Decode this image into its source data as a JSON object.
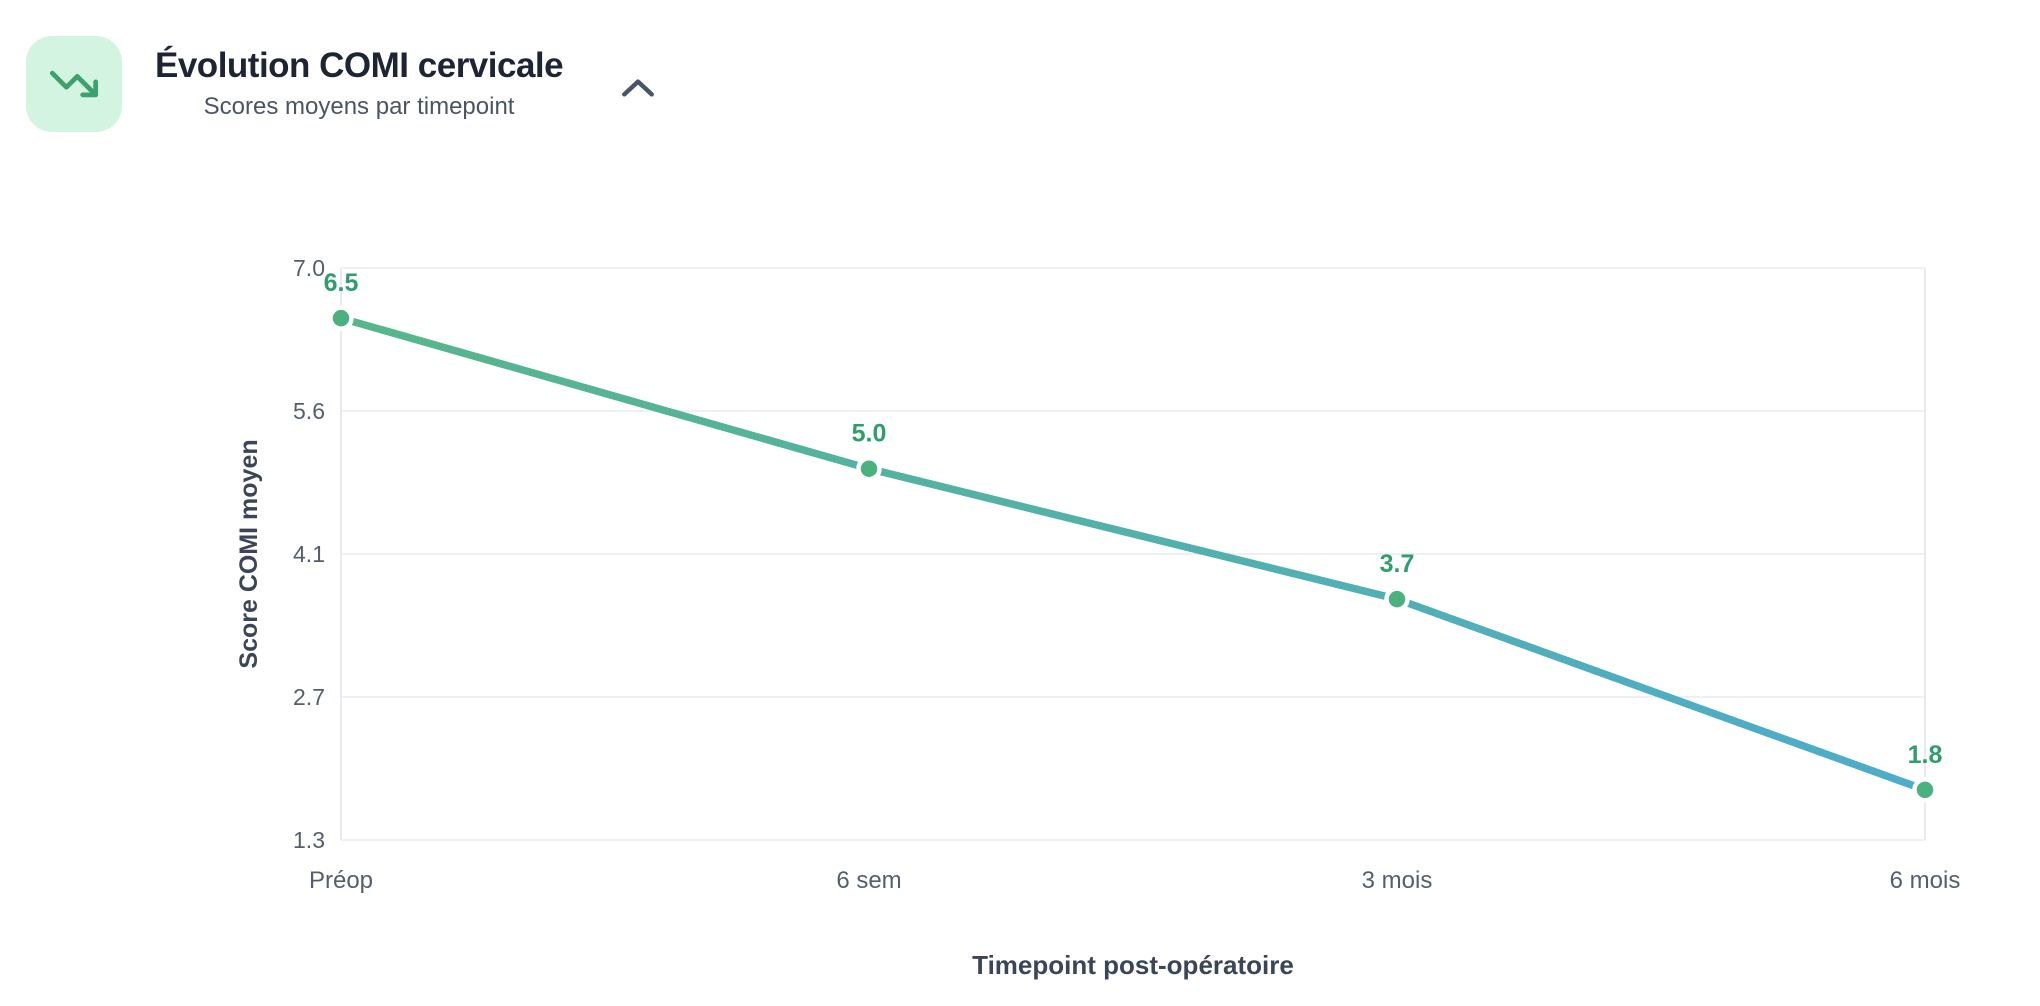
{
  "header": {
    "title": "Évolution COMI cervicale",
    "subtitle": "Scores moyens par timepoint",
    "icon": "trending-down-icon",
    "collapse_icon": "chevron-up-icon"
  },
  "colors": {
    "icon_bg": "#d3f4e1",
    "icon_stroke": "#3ca06f",
    "title_text": "#1d2433",
    "subtitle_text": "#4a5563",
    "chevron": "#475569",
    "gridline": "#edf0f4",
    "axis_line": "#e7ebef",
    "tick_text": "#545f6e",
    "axis_title_text": "#3a4657",
    "data_label": "#2f9e6d",
    "point": "#4cb180",
    "point_ring": "#ffffff",
    "line_gradient_start": "#57b689",
    "line_gradient_end": "#4daccb"
  },
  "chart_data": {
    "type": "line",
    "title": "Évolution COMI cervicale",
    "subtitle": "Scores moyens par timepoint",
    "categories": [
      "Préop",
      "6 sem",
      "3 mois",
      "6 mois"
    ],
    "series": [
      {
        "name": "Score COMI moyen",
        "values": [
          6.5,
          5.0,
          3.7,
          1.8
        ]
      }
    ],
    "data_labels": [
      "6.5",
      "5.0",
      "3.7",
      "1.8"
    ],
    "xlabel": "Timepoint post-opératoire",
    "ylabel": "Score COMI moyen",
    "y_tick_labels": [
      "7.0",
      "5.6",
      "4.1",
      "2.7",
      "1.3"
    ],
    "ylim": [
      1.3,
      7.0
    ],
    "grid": "horizontal",
    "legend": "none"
  }
}
